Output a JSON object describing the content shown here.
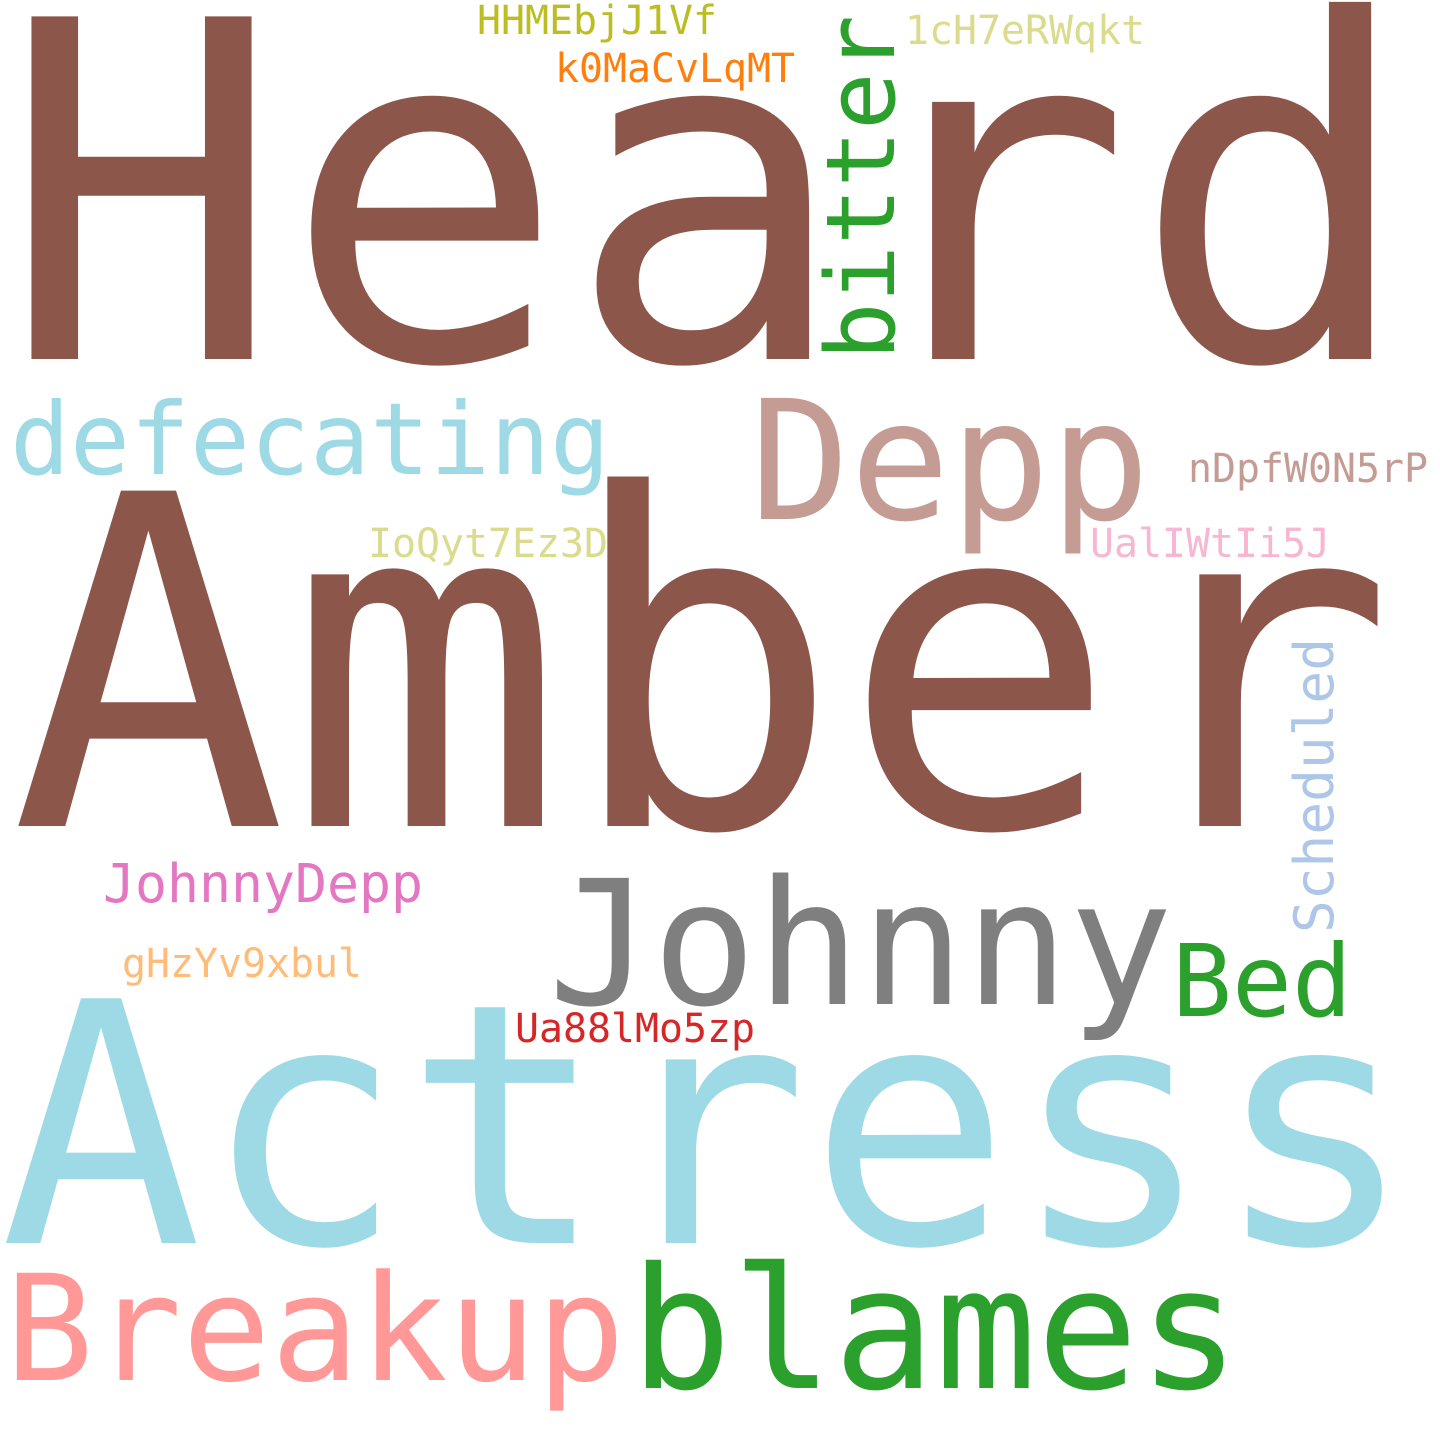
{
  "words": [
    {
      "text": "Heard",
      "color": "#8c564b",
      "orientation": "horizontal"
    },
    {
      "text": "Amber",
      "color": "#8c564b",
      "orientation": "horizontal"
    },
    {
      "text": "Actress",
      "color": "#9edae5",
      "orientation": "horizontal"
    },
    {
      "text": "Johnny",
      "color": "#7f7f7f",
      "orientation": "horizontal"
    },
    {
      "text": "Depp",
      "color": "#c49c94",
      "orientation": "horizontal"
    },
    {
      "text": "blames",
      "color": "#2ca02c",
      "orientation": "horizontal"
    },
    {
      "text": "Breakup",
      "color": "#ff9896",
      "orientation": "horizontal"
    },
    {
      "text": "defecating",
      "color": "#9edae5",
      "orientation": "horizontal"
    },
    {
      "text": "bitter",
      "color": "#2ca02c",
      "orientation": "vertical"
    },
    {
      "text": "Bed",
      "color": "#2ca02c",
      "orientation": "horizontal"
    },
    {
      "text": "Scheduled",
      "color": "#aec7e8",
      "orientation": "vertical"
    },
    {
      "text": "JohnnyDepp",
      "color": "#e377c2",
      "orientation": "horizontal"
    },
    {
      "text": "HHMEbjJ1Vf",
      "color": "#bcbd22",
      "orientation": "horizontal"
    },
    {
      "text": "1cH7eRWqkt",
      "color": "#dbdb8d",
      "orientation": "horizontal"
    },
    {
      "text": "k0MaCvLqMT",
      "color": "#ff7f0e",
      "orientation": "horizontal"
    },
    {
      "text": "nDpfW0N5rP",
      "color": "#c49c94",
      "orientation": "horizontal"
    },
    {
      "text": "IoQyt7Ez3D",
      "color": "#dbdb8d",
      "orientation": "horizontal"
    },
    {
      "text": "UalIWtIi5J",
      "color": "#f7b6d2",
      "orientation": "horizontal"
    },
    {
      "text": "gHzYv9xbul",
      "color": "#ffbb78",
      "orientation": "horizontal"
    },
    {
      "text": "Ua88lMo5zp",
      "color": "#d62728",
      "orientation": "horizontal"
    }
  ]
}
